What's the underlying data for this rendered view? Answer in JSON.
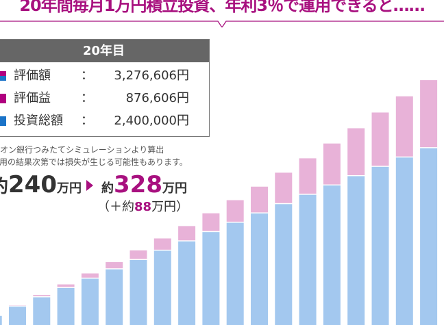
{
  "headline": "20年間毎月1万円積立投資、年利3％で運用できると……",
  "legend": {
    "header": "20年目",
    "rows": [
      {
        "label": "評価額",
        "colon": "：",
        "value": "3,276,606円"
      },
      {
        "label": "評価益",
        "colon": "：",
        "value": "876,606円"
      },
      {
        "label": "投資総額",
        "colon": "：",
        "value": "2,400,000円"
      }
    ]
  },
  "notes": [
    "オン銀行つみたてシミュレーションより算出",
    "用の結果次第では損失が生じる可能性もあります。"
  ],
  "summary": {
    "from_prefix": "約",
    "from_num": "240",
    "from_unit": "万円",
    "to_prefix": "約",
    "to_num": "328",
    "to_unit": "万円",
    "gain_open": "（＋約",
    "gain_num": "88",
    "gain_close": "万円）"
  },
  "colors": {
    "accent": "#a8107f",
    "principal": "#a3c8ef",
    "gain": "#e8b2d8",
    "principal_legend": "#1a73c8",
    "gain_legend": "#b0007f"
  },
  "chart_data": {
    "type": "bar",
    "stacked": true,
    "x": [
      1,
      2,
      3,
      4,
      5,
      6,
      7,
      8,
      9,
      10,
      11,
      12,
      13,
      14,
      15,
      16,
      17,
      18,
      19,
      20
    ],
    "series": [
      {
        "name": "投資総額",
        "values": [
          120000,
          240000,
          360000,
          480000,
          600000,
          720000,
          840000,
          960000,
          1080000,
          1200000,
          1320000,
          1440000,
          1560000,
          1680000,
          1800000,
          1920000,
          2040000,
          2160000,
          2280000,
          2400000
        ]
      },
      {
        "name": "評価益",
        "values": [
          1660,
          7040,
          16200,
          29320,
          46480,
          67800,
          93440,
          123480,
          158120,
          197400,
          241600,
          290760,
          345080,
          404680,
          469760,
          540480,
          616960,
          699480,
          788120,
          876606
        ]
      }
    ],
    "totals_label": "評価額"
  }
}
